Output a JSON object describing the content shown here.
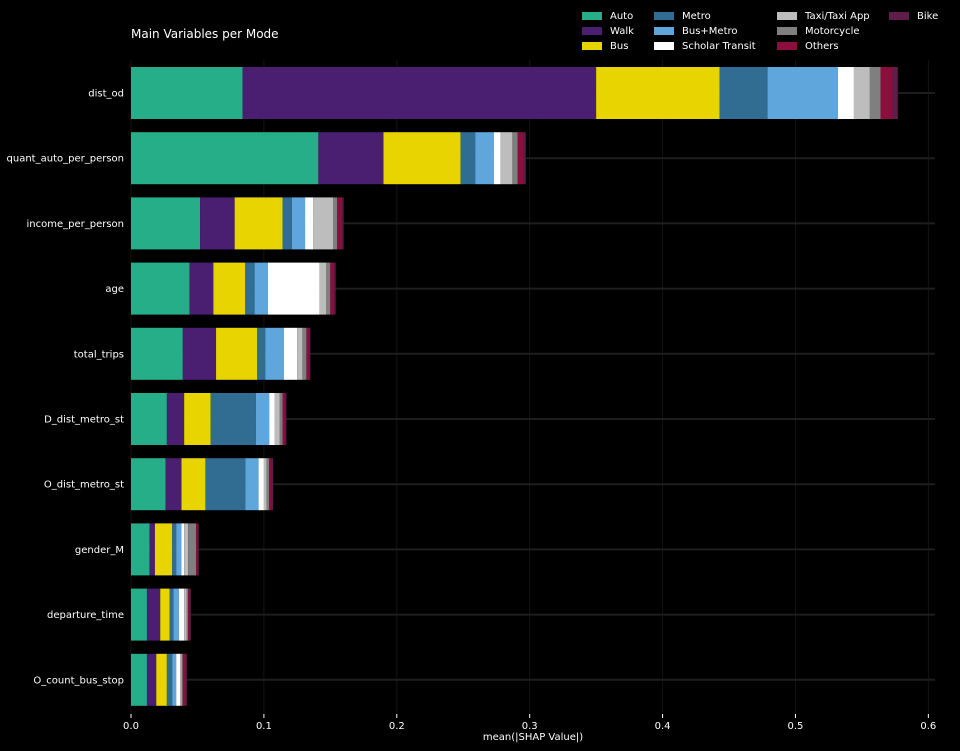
{
  "chart_data": {
    "type": "bar",
    "orientation": "horizontal",
    "stacked": true,
    "title": "Main Variables per Mode",
    "xlabel": "mean(|SHAP Value|)",
    "ylabel": "",
    "xlim": [
      0,
      0.605
    ],
    "xticks": [
      "0.0",
      "0.1",
      "0.2",
      "0.3",
      "0.4",
      "0.5",
      "0.6"
    ],
    "grid": true,
    "legend_position": "top-right",
    "categories": [
      "dist_od",
      "quant_auto_per_person",
      "income_per_person",
      "age",
      "total_trips",
      "D_dist_metro_st",
      "O_dist_metro_st",
      "gender_M",
      "departure_time",
      "O_count_bus_stop"
    ],
    "series": [
      {
        "name": "Auto",
        "color": "#26ae88",
        "values": [
          0.084,
          0.141,
          0.052,
          0.044,
          0.039,
          0.027,
          0.026,
          0.014,
          0.012,
          0.012
        ]
      },
      {
        "name": "Walk",
        "color": "#4a1f72",
        "values": [
          0.266,
          0.049,
          0.026,
          0.018,
          0.025,
          0.013,
          0.012,
          0.004,
          0.01,
          0.007
        ]
      },
      {
        "name": "Bus",
        "color": "#e7d400",
        "values": [
          0.093,
          0.058,
          0.036,
          0.024,
          0.031,
          0.02,
          0.018,
          0.013,
          0.007,
          0.008
        ]
      },
      {
        "name": "Metro",
        "color": "#316d93",
        "values": [
          0.036,
          0.011,
          0.007,
          0.007,
          0.006,
          0.034,
          0.03,
          0.003,
          0.003,
          0.004
        ]
      },
      {
        "name": "Bus+Metro",
        "color": "#5fa6dd",
        "values": [
          0.053,
          0.014,
          0.01,
          0.01,
          0.014,
          0.01,
          0.01,
          0.004,
          0.004,
          0.003
        ]
      },
      {
        "name": "Scholar Transit",
        "color": "#ffffff",
        "values": [
          0.012,
          0.005,
          0.006,
          0.039,
          0.01,
          0.004,
          0.004,
          0.002,
          0.004,
          0.003
        ]
      },
      {
        "name": "Taxi/Taxi App",
        "color": "#bdbdbd",
        "values": [
          0.012,
          0.009,
          0.015,
          0.005,
          0.004,
          0.004,
          0.002,
          0.003,
          0.002,
          0.001
        ]
      },
      {
        "name": "Motorcycle",
        "color": "#7f7f7f",
        "values": [
          0.008,
          0.004,
          0.003,
          0.003,
          0.003,
          0.002,
          0.002,
          0.006,
          0.001,
          0.001
        ]
      },
      {
        "name": "Others",
        "color": "#8b0f3d",
        "values": [
          0.009,
          0.004,
          0.004,
          0.003,
          0.002,
          0.002,
          0.002,
          0.001,
          0.001,
          0.002
        ]
      },
      {
        "name": "Bike",
        "color": "#5f1d49",
        "values": [
          0.004,
          0.002,
          0.001,
          0.001,
          0.001,
          0.001,
          0.001,
          0.001,
          0.001,
          0.001
        ]
      }
    ]
  }
}
